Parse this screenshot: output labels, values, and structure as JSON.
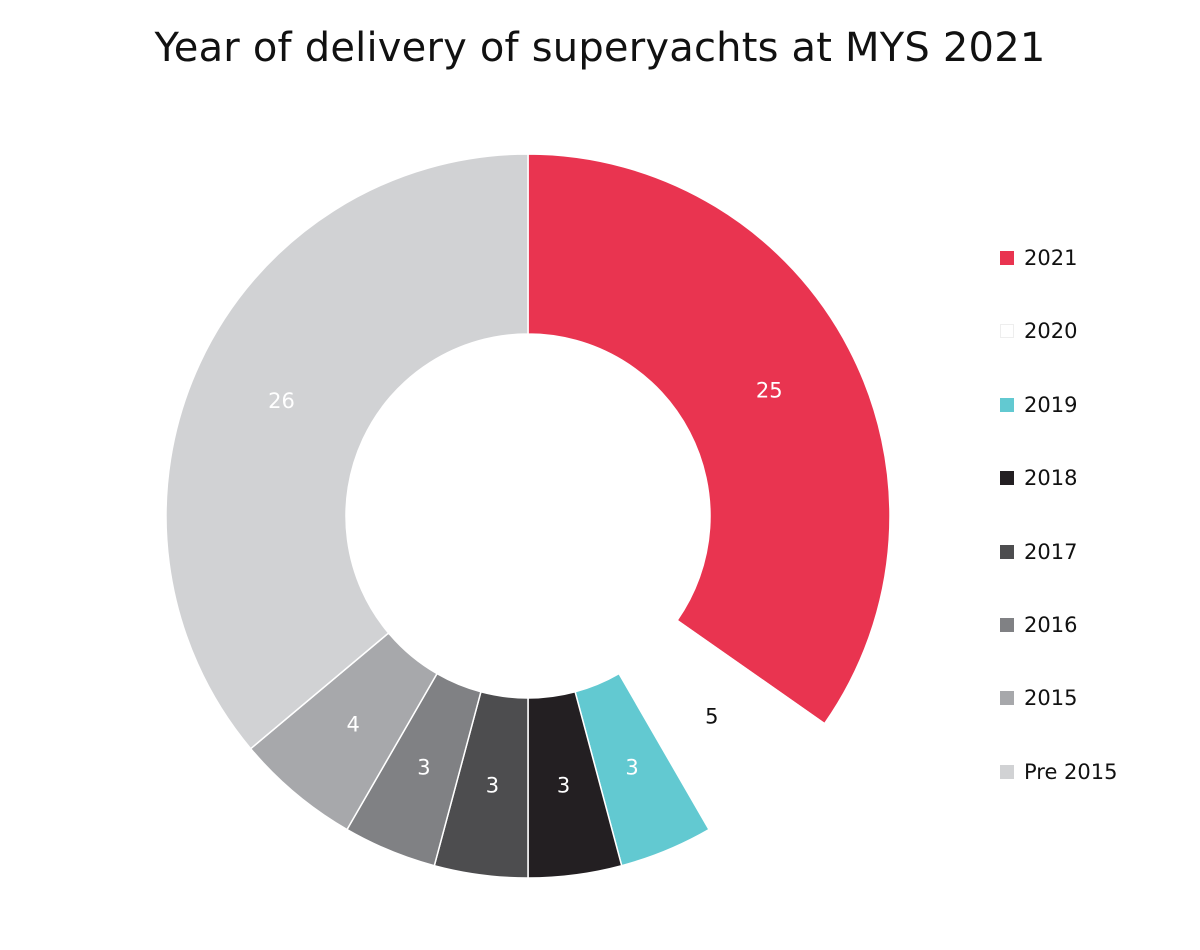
{
  "chart_data": {
    "type": "pie",
    "variant": "donut",
    "title": "Year of delivery of superyachts at MYS 2021",
    "legend_position": "right",
    "slices": [
      {
        "label": "2021",
        "value": 25,
        "color": "#E93450",
        "label_color": "#FFFFFF"
      },
      {
        "label": "2020",
        "value": 5,
        "color": "#FFFFFF",
        "label_color": "#111111"
      },
      {
        "label": "2019",
        "value": 3,
        "color": "#62C9D1",
        "label_color": "#FFFFFF"
      },
      {
        "label": "2018",
        "value": 3,
        "color": "#231F22",
        "label_color": "#FFFFFF"
      },
      {
        "label": "2017",
        "value": 3,
        "color": "#4D4D4F",
        "label_color": "#FFFFFF"
      },
      {
        "label": "2016",
        "value": 3,
        "color": "#808184",
        "label_color": "#FFFFFF"
      },
      {
        "label": "2015",
        "value": 4,
        "color": "#A7A8AB",
        "label_color": "#FFFFFF"
      },
      {
        "label": "Pre 2015",
        "value": 26,
        "color": "#D1D2D4",
        "label_color": "#FFFFFF"
      }
    ]
  }
}
